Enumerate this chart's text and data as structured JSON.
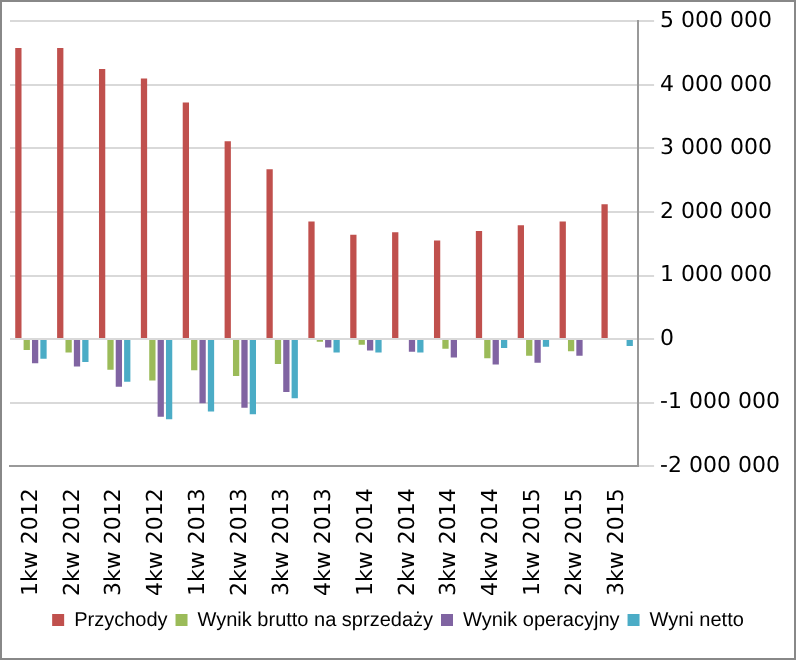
{
  "chart_data": {
    "type": "bar",
    "categories": [
      "1kw 2012",
      "2kw 2012",
      "3kw 2012",
      "4kw 2012",
      "1kw 2013",
      "2kw 2013",
      "3kw 2013",
      "4kw 2013",
      "1kw 2014",
      "2kw 2014",
      "3kw 2014",
      "4kw 2014",
      "1kw 2015",
      "2kw 2015",
      "3kw 2015"
    ],
    "series": [
      {
        "name": "Przychody",
        "color": "#c0504d",
        "values": [
          4580000,
          4580000,
          4250000,
          4100000,
          3720000,
          3110000,
          2670000,
          1850000,
          1640000,
          1680000,
          1550000,
          1700000,
          1790000,
          1850000,
          2120000
        ]
      },
      {
        "name": "Wynik brutto na sprzedaży",
        "color": "#9bbb59",
        "values": [
          -170000,
          -210000,
          -480000,
          -650000,
          -490000,
          -580000,
          -390000,
          -40000,
          -90000,
          null,
          -150000,
          -300000,
          -260000,
          -190000,
          null
        ]
      },
      {
        "name": "Wynik operacyjny",
        "color": "#8064a2",
        "values": [
          -380000,
          -430000,
          -750000,
          -1220000,
          -1010000,
          -1080000,
          -830000,
          -130000,
          -180000,
          -200000,
          -290000,
          -400000,
          -370000,
          -260000,
          null
        ]
      },
      {
        "name": "Wyni netto",
        "color": "#4bacc6",
        "values": [
          -310000,
          -360000,
          -670000,
          -1260000,
          -1140000,
          -1180000,
          -930000,
          -210000,
          -210000,
          -210000,
          null,
          -140000,
          -120000,
          null,
          -110000
        ]
      }
    ],
    "ylim": [
      -2000000,
      5000000
    ],
    "yticks": [
      {
        "value": -2000000,
        "label": "-2 000 000"
      },
      {
        "value": -1000000,
        "label": "-1 000 000"
      },
      {
        "value": 0,
        "label": "0"
      },
      {
        "value": 1000000,
        "label": "1 000 000"
      },
      {
        "value": 2000000,
        "label": "2 000 000"
      },
      {
        "value": 3000000,
        "label": "3 000 000"
      },
      {
        "value": 4000000,
        "label": "4 000 000"
      },
      {
        "value": 5000000,
        "label": "5 000 000"
      }
    ],
    "grid": "y",
    "legend": "bottom"
  }
}
